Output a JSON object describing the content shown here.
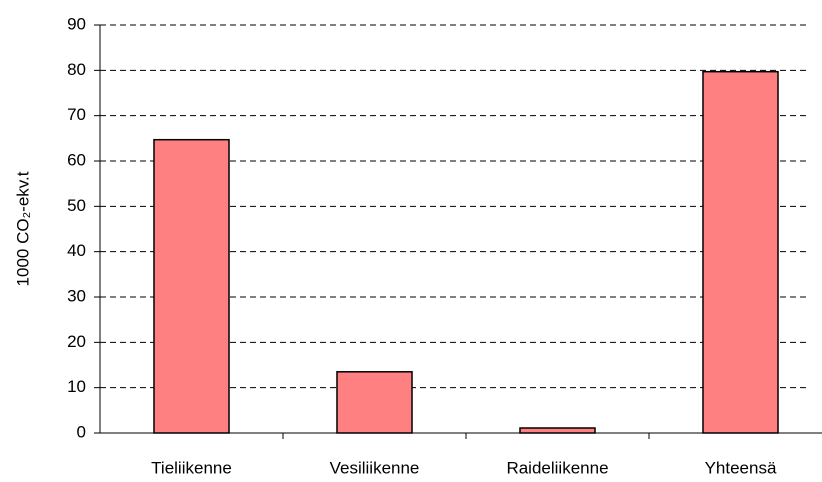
{
  "chart_data": {
    "type": "bar",
    "y_label": "1000 CO₂-ekv.t",
    "categories": [
      "Tieliikenne",
      "Vesiliikenne",
      "Raideliikenne",
      "Yhteensä"
    ],
    "values": [
      64.7,
      13.5,
      1.1,
      79.7
    ],
    "color": "#ff8080",
    "ylim": [
      0,
      90
    ],
    "yticks": [
      0,
      10,
      20,
      30,
      40,
      50,
      60,
      70,
      80,
      90
    ],
    "grid": true
  }
}
